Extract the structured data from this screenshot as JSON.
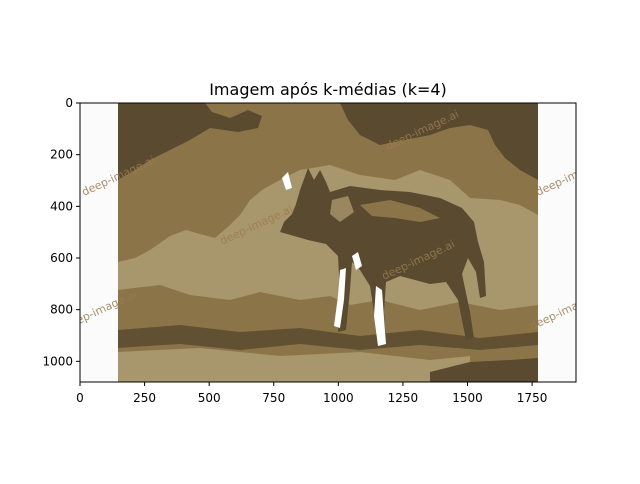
{
  "chart_data": {
    "type": "image",
    "title": "Imagem após k-médias (k=4)",
    "xlabel": "",
    "ylabel": "",
    "xlim": [
      0,
      1920
    ],
    "ylim": [
      1080,
      0
    ],
    "x_ticks": [
      0,
      250,
      500,
      750,
      1000,
      1250,
      1500,
      1750
    ],
    "y_ticks": [
      0,
      200,
      400,
      600,
      800,
      1000
    ],
    "grid": false,
    "k": 4,
    "palette": [
      "#5a4a30",
      "#8b7548",
      "#a8966c",
      "#ffffff"
    ],
    "background_color": "#fbfbfb",
    "watermark_text": "deep-image.ai",
    "watermark_color": "#9a7c50"
  }
}
